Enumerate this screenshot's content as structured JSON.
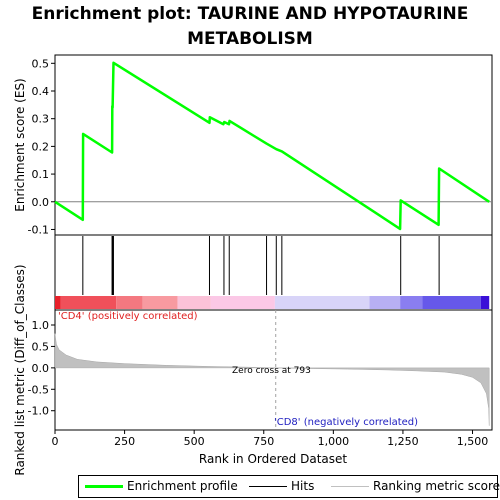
{
  "title": "Enrichment plot: TAURINE AND HYPOTAURINE METABOLISM",
  "chart_data": {
    "type": "line",
    "title": "Enrichment plot: TAURINE AND HYPOTAURINE METABOLISM",
    "xlabel": "Rank in Ordered Dataset",
    "xlim": [
      0,
      1570
    ],
    "x_ticks": [
      0,
      250,
      500,
      750,
      1000,
      1250,
      1500
    ],
    "x_tick_labels": [
      "0",
      "250",
      "500",
      "750",
      "1,000",
      "1,250",
      "1,500"
    ],
    "enrichment": {
      "ylabel": "Enrichment score (ES)",
      "ylim": [
        -0.12,
        0.53
      ],
      "y_ticks": [
        -0.1,
        0.0,
        0.1,
        0.2,
        0.3,
        0.4,
        0.5
      ],
      "y_tick_labels": [
        "-0.1",
        "0.0",
        "0.1",
        "0.2",
        "0.3",
        "0.4",
        "0.5"
      ],
      "series_color": "#00ff00",
      "points": [
        [
          0,
          0.0
        ],
        [
          100,
          -0.065
        ],
        [
          101,
          0.245
        ],
        [
          205,
          0.178
        ],
        [
          206,
          0.345
        ],
        [
          207,
          0.34
        ],
        [
          210,
          0.502
        ],
        [
          555,
          0.285
        ],
        [
          556,
          0.305
        ],
        [
          605,
          0.28
        ],
        [
          608,
          0.288
        ],
        [
          625,
          0.28
        ],
        [
          627,
          0.292
        ],
        [
          760,
          0.21
        ],
        [
          795,
          0.19
        ],
        [
          815,
          0.182
        ],
        [
          1240,
          -0.098
        ],
        [
          1242,
          0.005
        ],
        [
          1378,
          -0.083
        ],
        [
          1380,
          0.12
        ],
        [
          1560,
          0.0
        ]
      ]
    },
    "hits": [
      100,
      205,
      208,
      210,
      555,
      607,
      626,
      760,
      795,
      815,
      1242,
      1380
    ],
    "color_band": [
      {
        "from": 0,
        "to": 20,
        "color": "#e8202a"
      },
      {
        "from": 20,
        "to": 220,
        "color": "#f0505a"
      },
      {
        "from": 220,
        "to": 315,
        "color": "#f47880"
      },
      {
        "from": 315,
        "to": 440,
        "color": "#f89aa0"
      },
      {
        "from": 440,
        "to": 560,
        "color": "#fbc2d8"
      },
      {
        "from": 560,
        "to": 790,
        "color": "#fbc8e6"
      },
      {
        "from": 790,
        "to": 1130,
        "color": "#d8d4f8"
      },
      {
        "from": 1130,
        "to": 1240,
        "color": "#b8b0f4"
      },
      {
        "from": 1240,
        "to": 1320,
        "color": "#8a7ef0"
      },
      {
        "from": 1320,
        "to": 1530,
        "color": "#6658ea"
      },
      {
        "from": 1530,
        "to": 1560,
        "color": "#3a10d8"
      }
    ],
    "ranked_metric": {
      "ylabel": "Ranked list metric (Diff_of_Classes)",
      "ylim": [
        -1.45,
        1.35
      ],
      "y_ticks": [
        -1.0,
        -0.5,
        0.0,
        0.5,
        1.0
      ],
      "y_tick_labels": [
        "-1.0",
        "-0.5",
        "0.0",
        "0.5",
        "1.0"
      ],
      "profile": [
        [
          0,
          0.8
        ],
        [
          5,
          0.55
        ],
        [
          15,
          0.42
        ],
        [
          40,
          0.3
        ],
        [
          80,
          0.2
        ],
        [
          150,
          0.14
        ],
        [
          250,
          0.1
        ],
        [
          400,
          0.06
        ],
        [
          550,
          0.035
        ],
        [
          700,
          0.015
        ],
        [
          793,
          0.0
        ],
        [
          900,
          -0.015
        ],
        [
          1050,
          -0.03
        ],
        [
          1200,
          -0.05
        ],
        [
          1300,
          -0.07
        ],
        [
          1400,
          -0.1
        ],
        [
          1460,
          -0.15
        ],
        [
          1500,
          -0.22
        ],
        [
          1530,
          -0.35
        ],
        [
          1550,
          -0.6
        ],
        [
          1558,
          -0.95
        ],
        [
          1560,
          -1.35
        ]
      ],
      "fill_color": "#c0c0c0"
    },
    "annotations": {
      "positive_label": "'CD4' (positively correlated)",
      "negative_label": "'CD8' (negatively correlated)",
      "zero_cross_label": "Zero cross at 793",
      "zero_cross_x": 793
    },
    "legend": {
      "position": "bottom",
      "items": [
        {
          "label": "Enrichment profile",
          "color": "#00ff00"
        },
        {
          "label": "Hits",
          "color": "#000000"
        },
        {
          "label": "Ranking metric scores",
          "color": "#c0c0c0"
        }
      ]
    }
  }
}
